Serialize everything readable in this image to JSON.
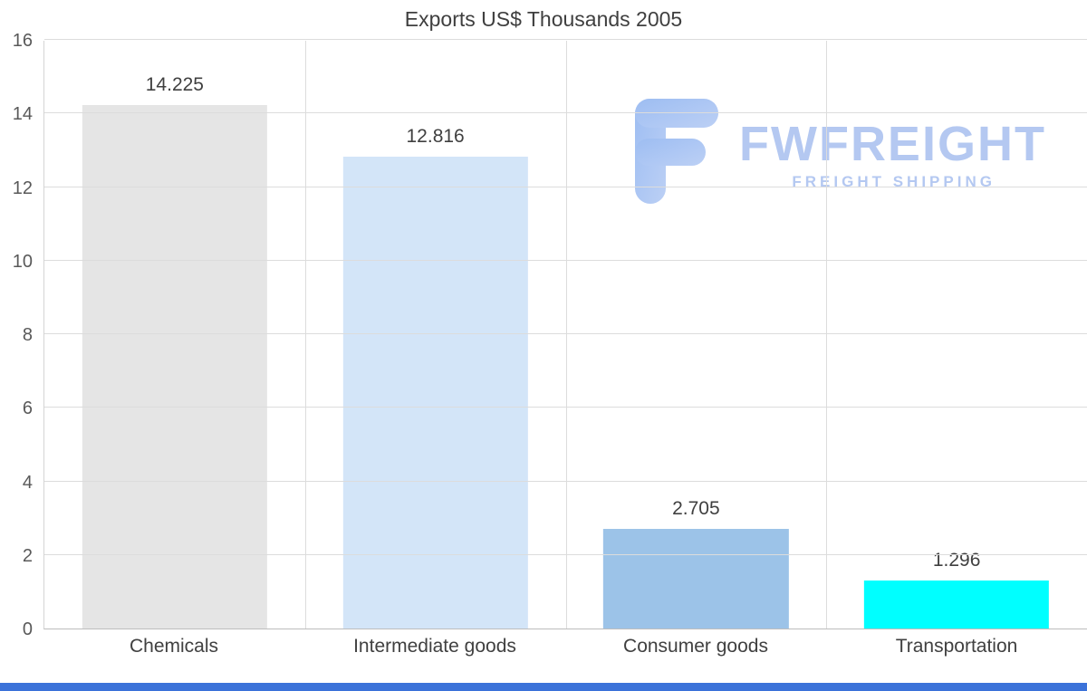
{
  "chart_data": {
    "type": "bar",
    "title": "Exports US$ Thousands 2005",
    "categories": [
      "Chemicals",
      "Intermediate goods",
      "Consumer goods",
      "Transportation"
    ],
    "values": [
      14.225,
      12.816,
      2.705,
      1.296
    ],
    "value_labels": [
      "14.225",
      "12.816",
      "2.705",
      "1.296"
    ],
    "bar_colors": [
      "#e5e5e5",
      "#d3e5f8",
      "#9cc3e8",
      "#00ffff"
    ],
    "xlabel": "",
    "ylabel": "",
    "ylim": [
      0,
      16
    ],
    "yticks": [
      0,
      2,
      4,
      6,
      8,
      10,
      12,
      14,
      16
    ],
    "grid": "on",
    "legend": "off"
  },
  "watermark": {
    "brand": "FWFREIGHT",
    "tagline": "FREIGHT SHIPPING",
    "color": "#b4c8f1"
  },
  "colors": {
    "grid": "#dcdcdc",
    "axis": "#bdbdbd",
    "title_text": "#3f3f3f",
    "tick_text": "#595959",
    "bottom_strip": "#3b72d9"
  }
}
